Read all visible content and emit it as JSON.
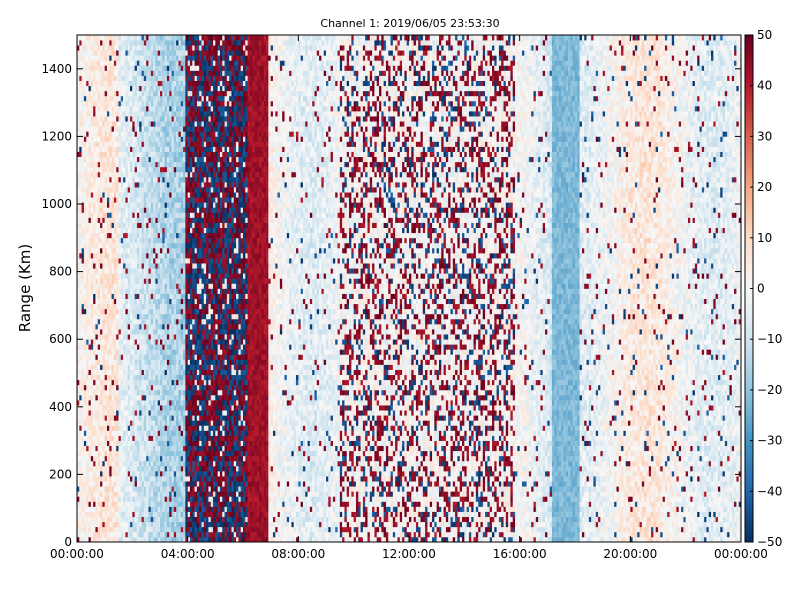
{
  "chart_data": {
    "type": "heatmap",
    "title": "Channel 1: 2019/06/05 23:53:30",
    "ylabel": "Range (Km)",
    "xlabel": "",
    "x_ticks": [
      "00:00:00",
      "04:00:00",
      "08:00:00",
      "12:00:00",
      "16:00:00",
      "20:00:00",
      "00:00:00"
    ],
    "y_ticks": [
      0,
      200,
      400,
      600,
      800,
      1000,
      1200,
      1400
    ],
    "xlim_hours": [
      0,
      24
    ],
    "ylim": [
      0,
      1500
    ],
    "colorbar": {
      "ticks": [
        50,
        40,
        30,
        20,
        10,
        0,
        -10,
        -20,
        -30,
        -40,
        -50
      ],
      "vmin": -50,
      "vmax": 50,
      "colors": [
        "#053061",
        "#2166ac",
        "#4393c3",
        "#92c5de",
        "#d1e5f0",
        "#f7f7f7",
        "#fddbc7",
        "#f4a582",
        "#d6604d",
        "#b2182b",
        "#67001f"
      ]
    },
    "grid": false,
    "data_summary": {
      "time_resolution_minutes": 5,
      "range_resolution_km": 15,
      "features": [
        {
          "hours": [
            3.9,
            6.2
          ],
          "value_min": -50,
          "value_max": 50,
          "pattern": "noisy"
        },
        {
          "hours": [
            6.2,
            6.9
          ],
          "value_min": 35,
          "value_max": 50,
          "pattern": "band"
        },
        {
          "hours": [
            9.5,
            15.8
          ],
          "value_min": -50,
          "value_max": 50,
          "pattern": "speckle"
        },
        {
          "hours": [
            17.2,
            18.2
          ],
          "value_min": -30,
          "value_max": -15,
          "pattern": "band"
        }
      ]
    }
  }
}
